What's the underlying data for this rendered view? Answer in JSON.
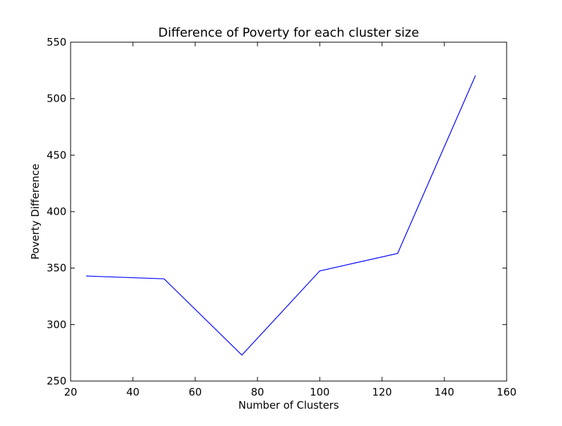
{
  "chart_data": {
    "type": "line",
    "title": "Difference of Poverty for each cluster size",
    "xlabel": "Number of Clusters",
    "ylabel": "Poverty Difference",
    "xlim": [
      20,
      160
    ],
    "ylim": [
      250,
      550
    ],
    "xticks": [
      20,
      40,
      60,
      80,
      100,
      120,
      140,
      160
    ],
    "yticks": [
      250,
      300,
      350,
      400,
      450,
      500,
      550
    ],
    "grid": false,
    "series": [
      {
        "color": "#0000ff",
        "x": [
          25,
          50,
          75,
          100,
          125,
          150
        ],
        "y": [
          343,
          340.5,
          273,
          347.5,
          363,
          520.5
        ]
      }
    ]
  }
}
